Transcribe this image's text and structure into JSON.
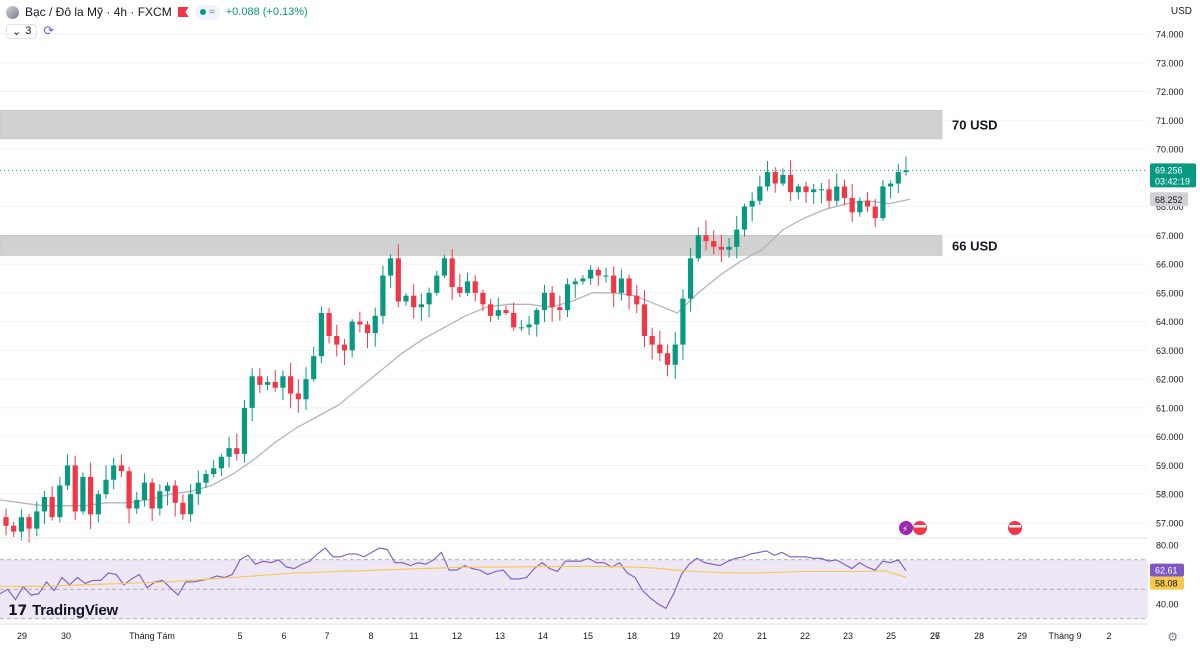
{
  "header": {
    "symbol_title": "Bạc / Đô la Mỹ · 4h · FXCM",
    "approx_symbol": "≈",
    "change": "+0.088 (+0.13%)",
    "indicator_count": "3",
    "currency": "USD"
  },
  "branding": {
    "logo_text": "TradingView"
  },
  "colors": {
    "up": "#089981",
    "down": "#f23645",
    "zone": "#d1d1d1",
    "ma": "#b2b5be",
    "rsi": "#7e57c2",
    "rsi_ma": "#f7c948",
    "rsi_band": "#ede7f6"
  },
  "chart_data": [
    {
      "type": "candlestick",
      "yrange": [
        56.6,
        74.2
      ],
      "y_ticks": [
        "74.000",
        "73.000",
        "72.000",
        "71.000",
        "70.000",
        "68.000",
        "67.000",
        "66.000",
        "65.000",
        "64.000",
        "63.000",
        "62.000",
        "61.000",
        "60.000",
        "59.000",
        "58.000",
        "57.000"
      ],
      "x_tick_labels": [
        "29",
        "30",
        "Tháng Tám",
        "5",
        "6",
        "7",
        "8",
        "11",
        "12",
        "13",
        "14",
        "15",
        "18",
        "19",
        "20",
        "21",
        "22",
        "23",
        "25",
        "26",
        "27",
        "28",
        "29",
        "Tháng 9",
        "2"
      ],
      "last_price": "69.256",
      "countdown": "03:42:19",
      "ma_value": "68.252",
      "zones": [
        {
          "label": "70 USD",
          "from": 70.35,
          "to": 71.35
        },
        {
          "label": "66 USD",
          "from": 66.3,
          "to": 67.0
        }
      ],
      "series": [
        {
          "name": "price",
          "closes": [
            56.9,
            56.7,
            57.2,
            56.8,
            57.4,
            57.9,
            57.2,
            58.3,
            59.0,
            57.4,
            58.6,
            57.3,
            58.0,
            58.5,
            59.0,
            58.8,
            57.5,
            57.8,
            58.4,
            57.5,
            58.1,
            58.3,
            57.7,
            57.3,
            58.0,
            58.4,
            58.7,
            58.9,
            59.3,
            59.6,
            59.4,
            61.0,
            62.1,
            61.8,
            61.9,
            61.7,
            62.1,
            61.5,
            61.3,
            62.0,
            62.8,
            64.3,
            63.5,
            63.2,
            63.0,
            64.0,
            63.9,
            63.6,
            64.2,
            65.6,
            66.2,
            64.7,
            64.9,
            64.5,
            64.6,
            65.0,
            65.6,
            66.2,
            65.2,
            65.0,
            65.4,
            65.0,
            64.6,
            64.2,
            64.4,
            64.3,
            63.8,
            63.8,
            63.9,
            64.4,
            65.0,
            64.5,
            64.4,
            65.3,
            65.4,
            65.5,
            65.8,
            65.6,
            65.6,
            65.0,
            65.5,
            64.9,
            64.6,
            63.5,
            63.2,
            62.9,
            62.5,
            63.2,
            64.8,
            66.2,
            67.0,
            66.8,
            66.6,
            66.5,
            66.6,
            67.2,
            68.0,
            68.2,
            68.7,
            69.2,
            68.8,
            69.1,
            68.5,
            68.7,
            68.5,
            68.6,
            68.6,
            68.2,
            68.7,
            68.3,
            67.8,
            68.2,
            68.0,
            67.6,
            68.7,
            68.8,
            69.2,
            69.256
          ]
        },
        {
          "name": "ma",
          "values": [
            57.8,
            57.7,
            57.6,
            57.6,
            57.6,
            57.7,
            57.7,
            57.8,
            58.0,
            58.1,
            58.3,
            58.7,
            59.2,
            59.8,
            60.3,
            60.7,
            61.1,
            61.7,
            62.3,
            62.9,
            63.4,
            63.8,
            64.2,
            64.5,
            64.6,
            64.6,
            64.5,
            64.7,
            65.0,
            65.0,
            64.9,
            64.6,
            64.3,
            65.0,
            65.6,
            66.1,
            66.5,
            67.2,
            67.6,
            67.9,
            68.1,
            68.2,
            68.1,
            68.252
          ]
        }
      ]
    },
    {
      "type": "line",
      "title": "RSI",
      "y_ticks": [
        "80.00",
        "40.00"
      ],
      "rsi_value": "62.61",
      "rsi_ma_value": "58.08",
      "series": [
        {
          "name": "rsi",
          "values": [
            47,
            50,
            43,
            52,
            46,
            47,
            55,
            49,
            58,
            53,
            58,
            54,
            56,
            56,
            61,
            60,
            53,
            57,
            60,
            51,
            55,
            56,
            51,
            46,
            55,
            55,
            56,
            57,
            59,
            58,
            60,
            70,
            73,
            67,
            69,
            68,
            70,
            65,
            64,
            67,
            69,
            74,
            78,
            72,
            72,
            74,
            74,
            72,
            75,
            78,
            77,
            68,
            68,
            66,
            68,
            67,
            70,
            75,
            63,
            63,
            66,
            64,
            63,
            60,
            62,
            63,
            57,
            57,
            58,
            64,
            68,
            64,
            62,
            69,
            69,
            69,
            71,
            68,
            68,
            65,
            68,
            61,
            58,
            49,
            44,
            40,
            37,
            47,
            60,
            67,
            71,
            68,
            67,
            66,
            69,
            71,
            72,
            74,
            75,
            76,
            73,
            75,
            72,
            72,
            72,
            71,
            71,
            69,
            70,
            67,
            64,
            68,
            65,
            63,
            69,
            68,
            70,
            62.61
          ]
        },
        {
          "name": "rsi_ma",
          "values": [
            52,
            52,
            52,
            52.5,
            53,
            53.5,
            54,
            54.5,
            55,
            56,
            57,
            58,
            59,
            60,
            61,
            61.5,
            62,
            62.5,
            63,
            63.5,
            64,
            64.5,
            65,
            65,
            65,
            65.3,
            65.5,
            65.5,
            65.5,
            65.3,
            65,
            64.5,
            63,
            62,
            61.5,
            61,
            61,
            61.5,
            62,
            62,
            62,
            62,
            62.5,
            58.08
          ]
        }
      ]
    }
  ]
}
